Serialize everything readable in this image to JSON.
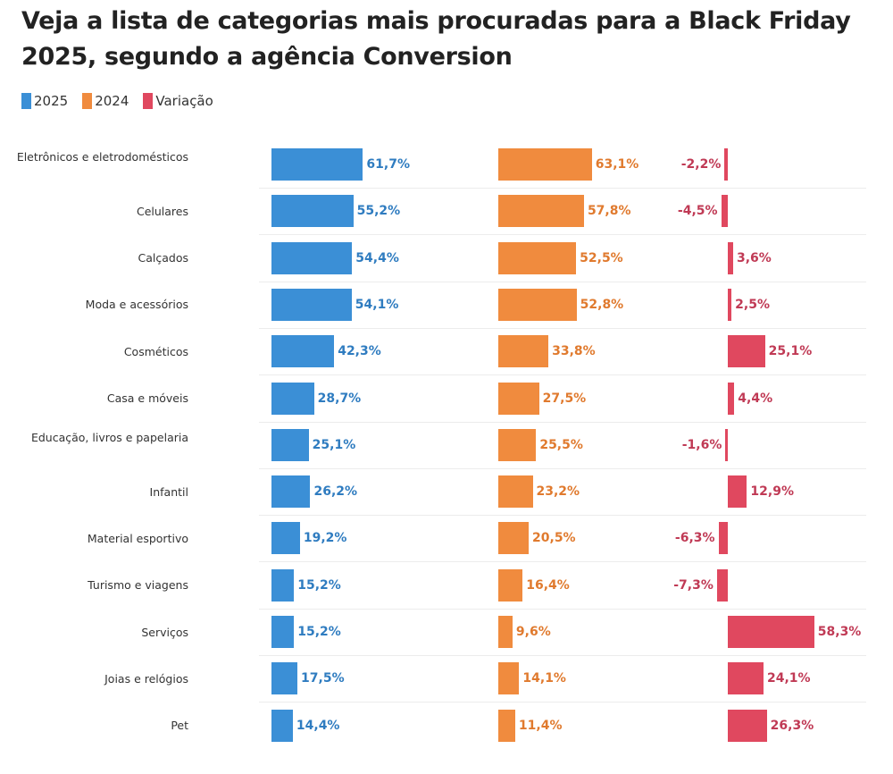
{
  "title": "Veja a lista de categorias mais procuradas para a Black Friday 2025, segundo a agência Conversion",
  "legend": [
    {
      "label": "2025",
      "color": "#3b8fd6"
    },
    {
      "label": "2024",
      "color": "#f08b3e"
    },
    {
      "label": "Variação",
      "color": "#e0485f"
    }
  ],
  "chart_data": {
    "type": "bar",
    "orientation": "horizontal",
    "title": "Veja a lista de categorias mais procuradas para a Black Friday 2025, segundo a agência Conversion",
    "categories": [
      "Eletrônicos e eletrodomésticos",
      "Celulares",
      "Calçados",
      "Moda e acessórios",
      "Cosméticos",
      "Casa e móveis",
      "Educação, livros e papelaria",
      "Infantil",
      "Material esportivo",
      "Turismo e viagens",
      "Serviços",
      "Joias e relógios",
      "Pet"
    ],
    "series": [
      {
        "name": "2025",
        "color": "#3b8fd6",
        "label_color": "#2f7cc0",
        "values": [
          61.7,
          55.2,
          54.4,
          54.1,
          42.3,
          28.7,
          25.1,
          26.2,
          19.2,
          15.2,
          15.2,
          17.5,
          14.4
        ],
        "labels": [
          "61,7%",
          "55,2%",
          "54,4%",
          "54,1%",
          "42,3%",
          "28,7%",
          "25,1%",
          "26,2%",
          "19,2%",
          "15,2%",
          "15,2%",
          "17,5%",
          "14,4%"
        ]
      },
      {
        "name": "2024",
        "color": "#f08b3e",
        "label_color": "#e07a2e",
        "values": [
          63.1,
          57.8,
          52.5,
          52.8,
          33.8,
          27.5,
          25.5,
          23.2,
          20.5,
          16.4,
          9.6,
          14.1,
          11.4
        ],
        "labels": [
          "63,1%",
          "57,8%",
          "52,5%",
          "52,8%",
          "33,8%",
          "27,5%",
          "25,5%",
          "23,2%",
          "20,5%",
          "16,4%",
          "9,6%",
          "14,1%",
          "11,4%"
        ]
      },
      {
        "name": "Variação",
        "color": "#e0485f",
        "label_color": "#c03a55",
        "values": [
          -2.2,
          -4.5,
          3.6,
          2.5,
          25.1,
          4.4,
          -1.6,
          12.9,
          -6.3,
          -7.3,
          58.3,
          24.1,
          26.3
        ],
        "labels": [
          "-2,2%",
          "-4,5%",
          "3,6%",
          "2,5%",
          "25,1%",
          "4,4%",
          "-1,6%",
          "12,9%",
          "-6,3%",
          "-7,3%",
          "58,3%",
          "24,1%",
          "26,3%"
        ]
      }
    ],
    "xlabel": "",
    "ylabel": "",
    "legend_position": "top-left",
    "grid": true
  }
}
